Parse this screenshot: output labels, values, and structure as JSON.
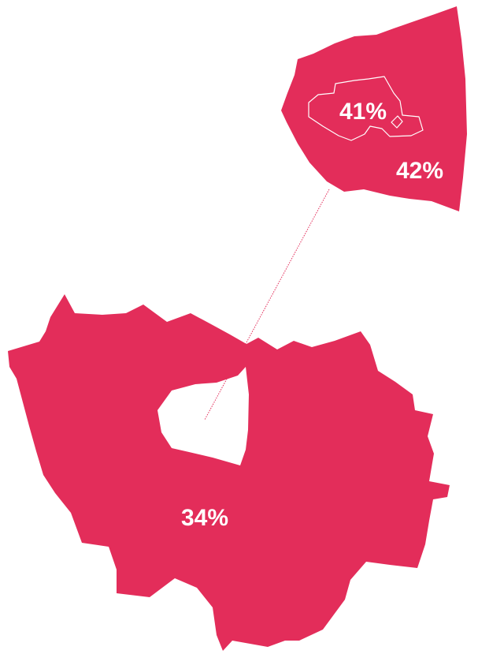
{
  "colors": {
    "region_fill": "#e32d5a",
    "label_text": "#ffffff",
    "background": "#ffffff"
  },
  "regions": {
    "paris": {
      "value_label": "41%"
    },
    "petite_couronne": {
      "value_label": "42%"
    },
    "grande_couronne": {
      "value_label": "34%"
    }
  }
}
